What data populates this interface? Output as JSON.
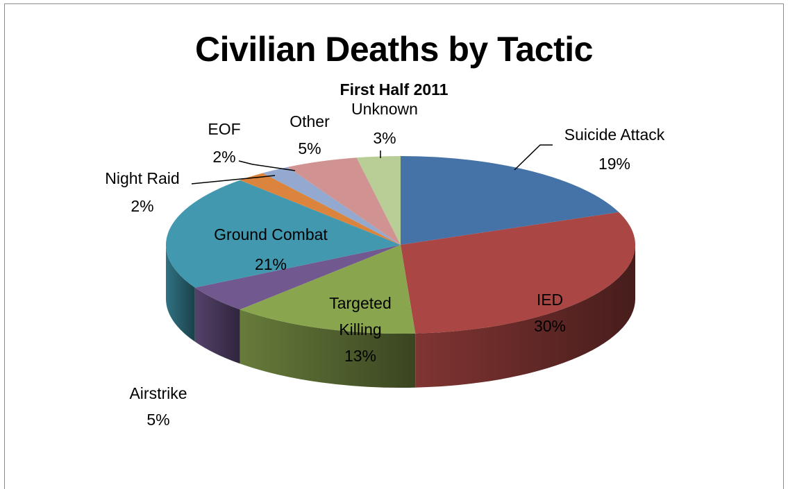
{
  "chart_data": {
    "type": "pie",
    "title": "Civilian Deaths by Tactic",
    "subtitle": "First Half 2011",
    "slices": [
      {
        "label": "Suicide Attack",
        "value": 19,
        "pct": "19%",
        "color": "#4572a7"
      },
      {
        "label": "IED",
        "value": 30,
        "pct": "30%",
        "color": "#aa4643"
      },
      {
        "label": "Targeted Killing",
        "value": 13,
        "pct": "13%",
        "color": "#89a54e"
      },
      {
        "label": "Airstrike",
        "value": 5,
        "pct": "5%",
        "color": "#71588f"
      },
      {
        "label": "Ground Combat",
        "value": 21,
        "pct": "21%",
        "color": "#4198af"
      },
      {
        "label": "Night Raid",
        "value": 2,
        "pct": "2%",
        "color": "#db843d"
      },
      {
        "label": "EOF",
        "value": 2,
        "pct": "2%",
        "color": "#93a9cf"
      },
      {
        "label": "Other",
        "value": 5,
        "pct": "5%",
        "color": "#d09391"
      },
      {
        "label": "Unknown",
        "value": 3,
        "pct": "3%",
        "color": "#b9cd96"
      }
    ]
  }
}
